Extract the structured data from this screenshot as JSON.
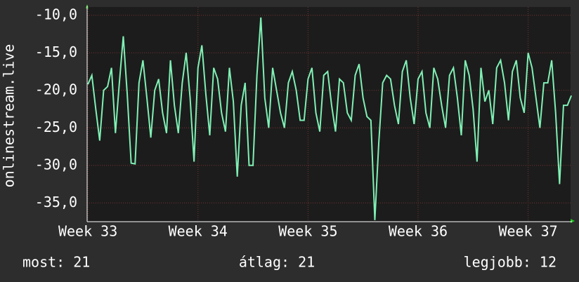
{
  "chart_data": {
    "type": "line",
    "y_label": "onlinestream.live",
    "x": [
      0,
      0.25,
      0.5,
      0.75,
      1,
      1.25,
      1.5,
      1.75,
      2,
      2.25,
      2.5,
      2.75,
      3,
      3.25,
      3.5,
      3.75,
      4,
      4.25,
      4.5,
      4.75,
      5,
      5.25,
      5.5,
      5.75,
      6,
      6.25,
      6.5,
      6.75,
      7,
      7.25,
      7.5,
      7.75,
      8,
      8.25,
      8.5,
      8.75,
      9,
      9.25,
      9.5,
      9.75,
      10,
      10.25,
      10.5,
      10.75,
      11,
      11.25,
      11.5,
      11.75,
      12,
      12.25,
      12.5,
      12.75,
      13,
      13.25,
      13.5,
      13.75,
      14,
      14.25,
      14.5,
      14.75,
      15,
      15.25,
      15.5,
      15.75,
      16,
      16.25,
      16.5,
      16.75,
      17,
      17.25,
      17.5,
      17.75,
      18,
      18.25,
      18.5,
      18.75,
      19,
      19.25,
      19.5,
      19.75,
      20,
      20.25,
      20.5,
      20.75,
      21,
      21.25,
      21.5,
      21.75,
      22,
      22.25,
      22.5,
      22.75,
      23,
      23.25,
      23.5,
      23.75,
      24,
      24.25,
      24.5,
      24.75,
      25,
      25.25,
      25.5,
      25.75,
      26,
      26.25,
      26.5,
      26.75,
      27,
      27.25,
      27.5,
      27.75,
      28,
      28.25,
      28.5,
      28.75,
      29,
      29.25,
      29.5,
      29.75,
      30,
      30.25,
      30.5,
      30.75
    ],
    "series": [
      {
        "name": "onlinestream.live",
        "color": "#7ff0b4",
        "values": [
          -19.2,
          -18,
          -22.5,
          -26.7,
          -20,
          -19.5,
          -17,
          -25.7,
          -19,
          -12.8,
          -20.5,
          -29.7,
          -29.8,
          -19,
          -16,
          -21,
          -26.3,
          -20,
          -18.5,
          -23,
          -25.7,
          -16,
          -22,
          -25.7,
          -19,
          -15,
          -21,
          -29.5,
          -17,
          -14,
          -20.5,
          -26,
          -17,
          -18.5,
          -23,
          -25.5,
          -17,
          -21.5,
          -31.5,
          -22,
          -19,
          -30,
          -30,
          -18,
          -10.3,
          -21,
          -25,
          -17,
          -20,
          -23,
          -25,
          -19,
          -17.5,
          -20,
          -24,
          -24,
          -18.5,
          -17,
          -23,
          -25.5,
          -18,
          -17.5,
          -22,
          -25.5,
          -18.5,
          -19,
          -23,
          -24,
          -18,
          -16.5,
          -21,
          -23.5,
          -24,
          -37.3,
          -27,
          -19,
          -18,
          -18.5,
          -22,
          -24.5,
          -17.5,
          -16,
          -21,
          -24.5,
          -18.5,
          -17.5,
          -23,
          -25,
          -17,
          -18.5,
          -22,
          -25,
          -18,
          -17,
          -21,
          -26,
          -16,
          -18,
          -22.5,
          -29.5,
          -17,
          -21.5,
          -20,
          -24.5,
          -17,
          -16,
          -19,
          -24,
          -17.5,
          -16,
          -21,
          -23,
          -15,
          -17,
          -21,
          -25,
          -19,
          -19,
          -16,
          -23,
          -32.5,
          -22,
          -22,
          -20.7
        ]
      }
    ],
    "xlim": [
      -0.05,
      30.7
    ],
    "xticks": [
      {
        "value": 0,
        "label": "Week 33"
      },
      {
        "value": 7,
        "label": "Week 34"
      },
      {
        "value": 14,
        "label": "Week 35"
      },
      {
        "value": 21,
        "label": "Week 36"
      },
      {
        "value": 28,
        "label": "Week 37"
      }
    ],
    "ylim": [
      -37.5,
      -8.9
    ],
    "yticks": [
      {
        "value": -35,
        "label": "-35,0"
      },
      {
        "value": -30,
        "label": "-30,0"
      },
      {
        "value": -25,
        "label": "-25,0"
      },
      {
        "value": -20,
        "label": "-20,0"
      },
      {
        "value": -15,
        "label": "-15,0"
      },
      {
        "value": -10,
        "label": "-10,0"
      }
    ],
    "grid": true,
    "stats": [
      "most: 21",
      "átlag: 21",
      "legjobb: 12"
    ]
  }
}
